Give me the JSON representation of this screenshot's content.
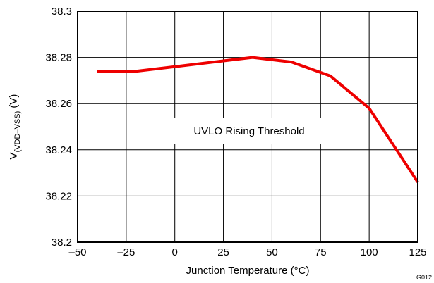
{
  "chart_data": {
    "type": "line",
    "xlabel": "Junction Temperature (°C)",
    "ylabel_main": "V",
    "ylabel_sub": "(VDD–VSS)",
    "ylabel_unit": " (V)",
    "xlim": [
      -50,
      125
    ],
    "ylim": [
      38.2,
      38.3
    ],
    "x_ticks": [
      -50,
      -25,
      0,
      25,
      50,
      75,
      100,
      125
    ],
    "x_tick_labels": [
      "–50",
      "–25",
      "0",
      "25",
      "50",
      "75",
      "100",
      "125"
    ],
    "y_ticks": [
      38.2,
      38.22,
      38.24,
      38.26,
      38.28,
      38.3
    ],
    "y_tick_labels": [
      "38.2",
      "38.22",
      "38.24",
      "38.26",
      "38.28",
      "38.3"
    ],
    "grid": true,
    "annotation": "UVLO Rising Threshold",
    "figure_id": "G012",
    "series": [
      {
        "color": "#ee0000",
        "x": [
          -40,
          -20,
          0,
          20,
          40,
          60,
          80,
          100,
          125
        ],
        "y": [
          38.274,
          38.274,
          38.276,
          38.278,
          38.28,
          38.278,
          38.272,
          38.258,
          38.226
        ]
      }
    ]
  }
}
